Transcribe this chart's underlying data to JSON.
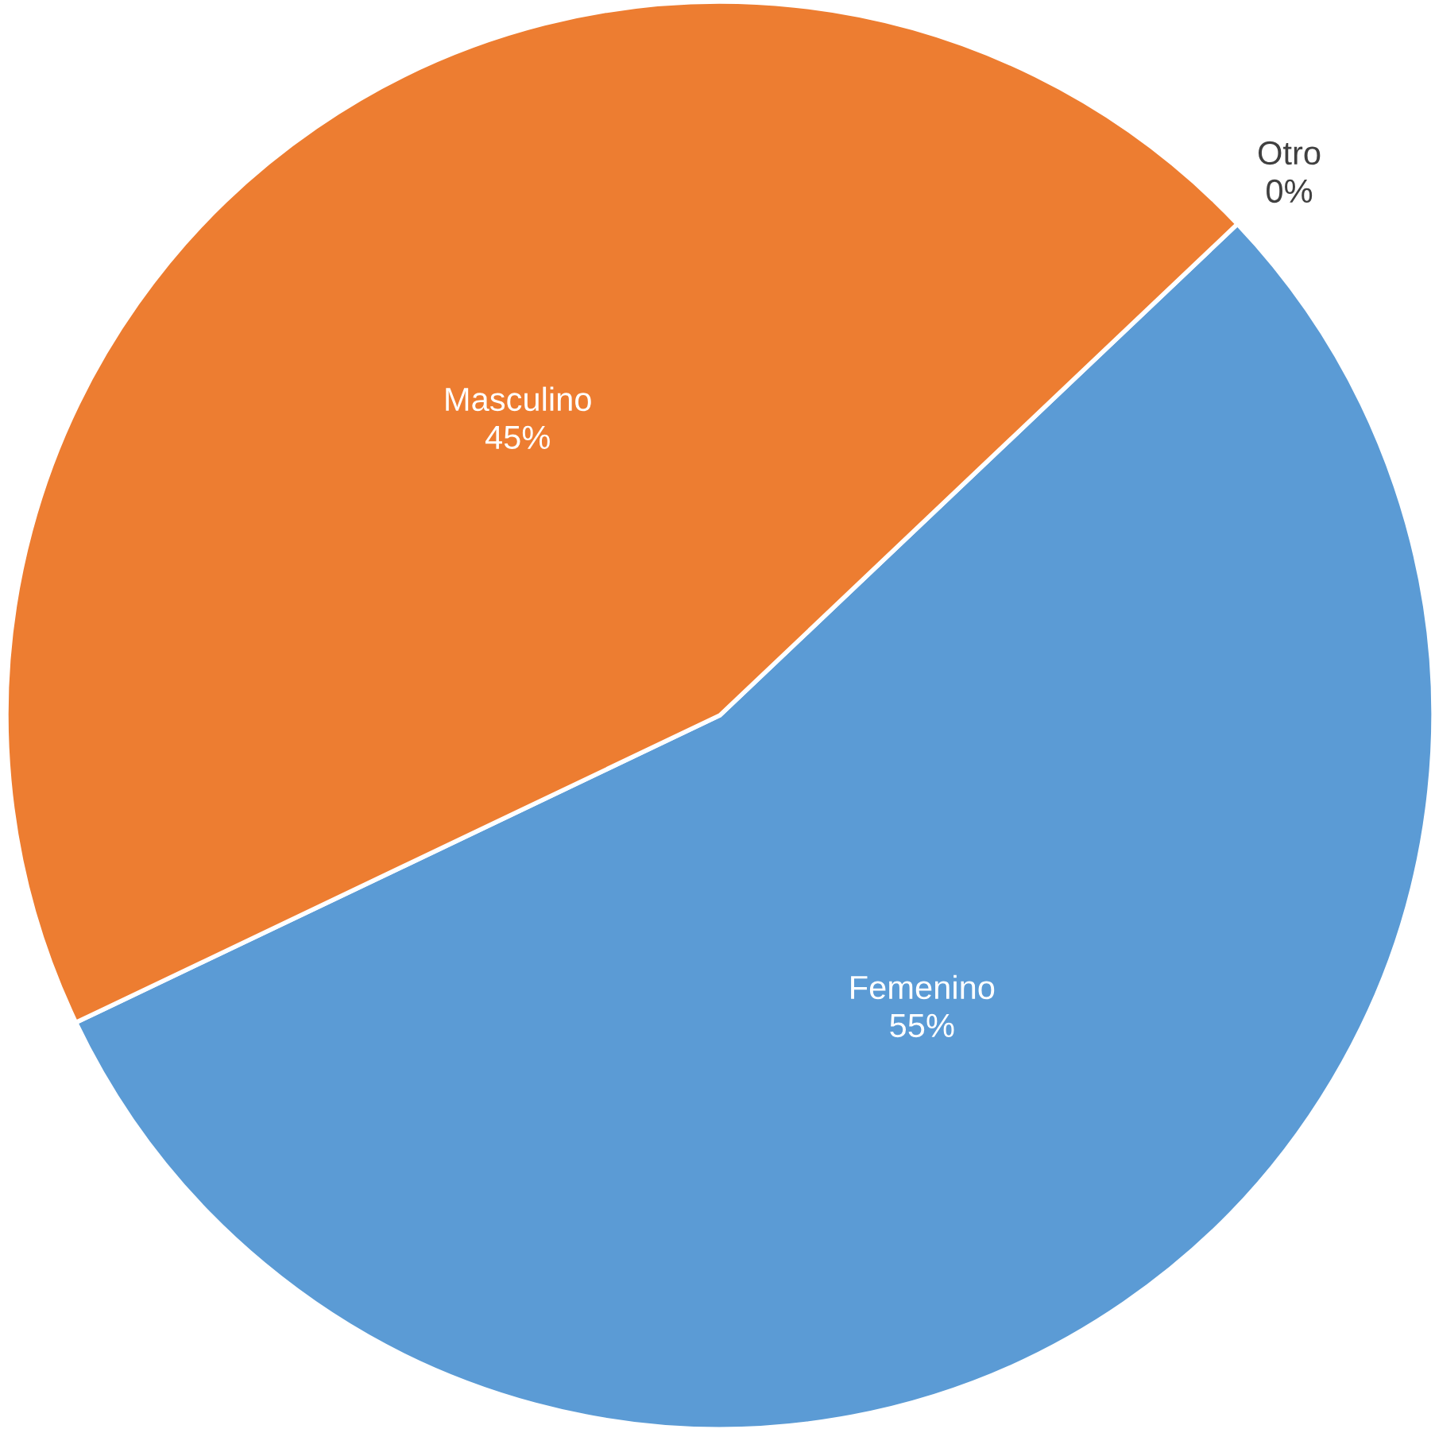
{
  "chart_data": {
    "type": "pie",
    "categories": [
      "Femenino",
      "Masculino",
      "Otro"
    ],
    "values": [
      55,
      45,
      0
    ],
    "value_labels": [
      "55%",
      "45%",
      "0%"
    ],
    "colors": [
      "#5b9bd5",
      "#ed7d31",
      "#a5a5a5"
    ]
  }
}
